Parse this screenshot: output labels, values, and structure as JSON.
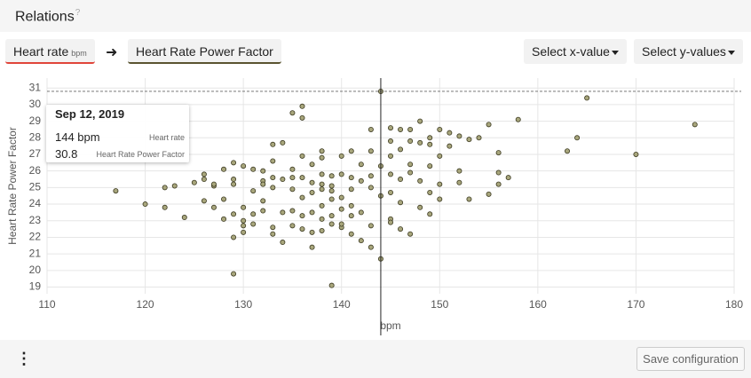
{
  "header": {
    "title": "Relations",
    "help": "?"
  },
  "toolbar": {
    "x_button": {
      "label": "Heart rate",
      "unit": "bpm"
    },
    "arrow": "➜",
    "y_button": {
      "label": "Heart Rate Power Factor"
    },
    "select_x": "Select x-value",
    "select_y": "Select y-values"
  },
  "tooltip": {
    "date": "Sep 12, 2019",
    "x_value": "144 bpm",
    "x_name": "Heart rate",
    "y_value": "30.8",
    "y_name": "Heart Rate Power Factor"
  },
  "footer": {
    "menu": "⋮",
    "save": "Save configuration"
  },
  "chart_data": {
    "type": "scatter",
    "x_label": "bpm",
    "y_label": "Heart Rate Power Factor",
    "xlim": [
      110,
      180
    ],
    "xticks": [
      110,
      120,
      130,
      140,
      150,
      160,
      170,
      180
    ],
    "ylim": [
      18.6,
      31.6
    ],
    "yticks": [
      19,
      20,
      21,
      22,
      23,
      24,
      25,
      26,
      27,
      28,
      29,
      30,
      31
    ],
    "grid": true,
    "color": "#a8a67c",
    "highlight": {
      "x": 144,
      "y": 30.8
    },
    "x": [
      117,
      120,
      122,
      122,
      123,
      124,
      125,
      126,
      126,
      126,
      127,
      127,
      127,
      128,
      128,
      128,
      129,
      129,
      129,
      129,
      129,
      129,
      130,
      130,
      130,
      130,
      130,
      131,
      131,
      131,
      131,
      132,
      132,
      132,
      132,
      132,
      133,
      133,
      133,
      133,
      133,
      133,
      134,
      134,
      134,
      134,
      135,
      135,
      135,
      135,
      135,
      135,
      136,
      136,
      136,
      136,
      136,
      136,
      136,
      137,
      137,
      137,
      137,
      137,
      137,
      138,
      138,
      138,
      138,
      138,
      138,
      138,
      138,
      139,
      139,
      139,
      139,
      139,
      139,
      139,
      140,
      140,
      140,
      140,
      140,
      140,
      141,
      141,
      141,
      141,
      141,
      141,
      142,
      142,
      142,
      142,
      143,
      143,
      143,
      143,
      143,
      143,
      144,
      144,
      144,
      144,
      145,
      145,
      145,
      145,
      145,
      145,
      145,
      146,
      146,
      146,
      146,
      146,
      147,
      147,
      147,
      147,
      147,
      148,
      148,
      148,
      148,
      149,
      149,
      149,
      149,
      149,
      150,
      150,
      150,
      150,
      151,
      151,
      152,
      152,
      152,
      153,
      153,
      154,
      155,
      155,
      156,
      156,
      156,
      157,
      158,
      163,
      164,
      165,
      170,
      176
    ],
    "values": [
      24.8,
      24,
      25,
      23.8,
      25.1,
      23.2,
      25.3,
      24.2,
      25.5,
      25.8,
      25.1,
      23.8,
      25.2,
      26.1,
      23.1,
      24.3,
      25.5,
      25.2,
      26.5,
      23.4,
      22,
      19.8,
      26.3,
      23.8,
      23,
      22.3,
      22.7,
      26.1,
      24.8,
      23.4,
      22.8,
      26,
      25.4,
      25.2,
      24.2,
      23.6,
      27.6,
      26.6,
      25.6,
      25,
      22.6,
      22.2,
      27.7,
      25.5,
      23.5,
      21.7,
      29.5,
      26.1,
      25.6,
      24.9,
      23.6,
      22.7,
      29.9,
      29.2,
      26.9,
      25.6,
      24.4,
      23.3,
      22.5,
      26.4,
      25.3,
      24.7,
      23.5,
      22.3,
      21.4,
      27.2,
      26.8,
      25.8,
      25.2,
      24.9,
      23.9,
      23.1,
      22.4,
      25.7,
      25.1,
      24.8,
      24.3,
      23.3,
      22.8,
      19.1,
      26.9,
      25.8,
      24.4,
      23.7,
      22.6,
      22.8,
      27.2,
      25.6,
      24.9,
      23.9,
      23.3,
      22.2,
      26.4,
      25.4,
      23.5,
      21.8,
      28.5,
      27.2,
      25.7,
      25,
      22.7,
      21.4,
      30.8,
      26.3,
      24.5,
      20.7,
      28.6,
      27.8,
      26.9,
      25.8,
      24.7,
      23.1,
      22.9,
      28.5,
      27.3,
      25.5,
      24.1,
      22.5,
      28.5,
      27.8,
      26.4,
      25.9,
      22.2,
      29,
      27.7,
      25.4,
      23.8,
      28,
      27.6,
      26.3,
      24.7,
      23.4,
      28.5,
      26.9,
      25.2,
      24.3,
      28.3,
      27.5,
      28.1,
      26,
      25.3,
      27.9,
      24.3,
      28,
      28.8,
      24.6,
      27.1,
      25.9,
      25.2,
      25.6,
      29.1,
      27.2,
      28,
      30.4,
      27,
      28.8
    ]
  }
}
